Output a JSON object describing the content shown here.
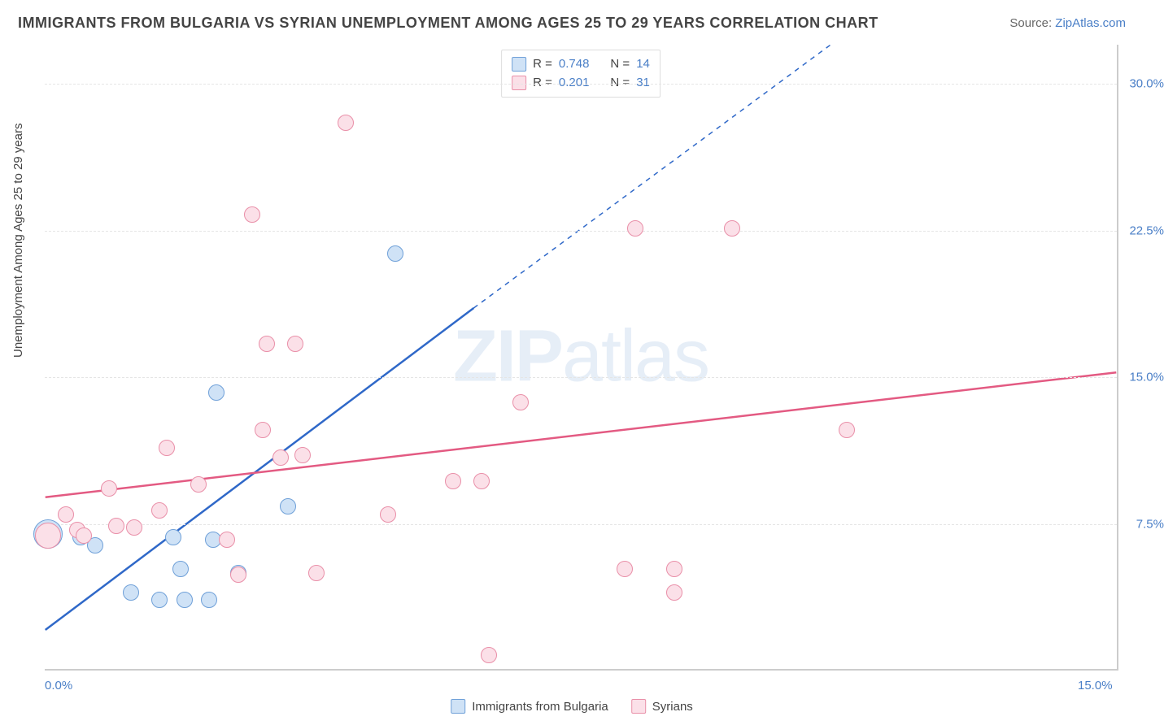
{
  "title": "IMMIGRANTS FROM BULGARIA VS SYRIAN UNEMPLOYMENT AMONG AGES 25 TO 29 YEARS CORRELATION CHART",
  "source_label": "Source: ",
  "source_name": "ZipAtlas.com",
  "watermark": "ZIPatlas",
  "yaxis_title": "Unemployment Among Ages 25 to 29 years",
  "plot": {
    "background_color": "#ffffff",
    "border_color": "#cccccc",
    "grid_color": "#e5e5e5",
    "tick_label_color": "#4a7fc7",
    "axis_title_fontsize": 15,
    "tick_fontsize": 15,
    "title_fontsize": 18,
    "title_color": "#444444",
    "xlim": [
      0,
      15
    ],
    "ylim": [
      0,
      32
    ],
    "yticks": [
      {
        "v": 7.5,
        "label": "7.5%"
      },
      {
        "v": 15.0,
        "label": "15.0%"
      },
      {
        "v": 22.5,
        "label": "22.5%"
      },
      {
        "v": 30.0,
        "label": "30.0%"
      }
    ],
    "xticks": [
      {
        "v": 0,
        "label": "0.0%"
      },
      {
        "v": 15,
        "label": "15.0%"
      }
    ]
  },
  "series": [
    {
      "name": "Immigrants from Bulgaria",
      "fill_color": "#cfe2f6",
      "stroke_color": "#6fa0d8",
      "line_color": "#2f68c8",
      "marker_radius": 10,
      "marker_border": 1.5,
      "R_label": "R = ",
      "R": "0.748",
      "N_label": "N = ",
      "N": "14",
      "trend": {
        "x1": 0,
        "y1": 2.0,
        "x2": 6.0,
        "y2": 18.5,
        "dash_to_x": 11.0,
        "dash_to_y": 32.0
      },
      "points": [
        {
          "x": 0.05,
          "y": 7.0,
          "r": 18
        },
        {
          "x": 0.5,
          "y": 6.8
        },
        {
          "x": 0.7,
          "y": 6.4
        },
        {
          "x": 1.2,
          "y": 4.0
        },
        {
          "x": 1.6,
          "y": 3.6
        },
        {
          "x": 1.8,
          "y": 6.8
        },
        {
          "x": 1.9,
          "y": 5.2
        },
        {
          "x": 1.95,
          "y": 3.6
        },
        {
          "x": 2.3,
          "y": 3.6
        },
        {
          "x": 2.35,
          "y": 6.7
        },
        {
          "x": 2.4,
          "y": 14.2
        },
        {
          "x": 2.7,
          "y": 5.0
        },
        {
          "x": 3.4,
          "y": 8.4
        },
        {
          "x": 4.9,
          "y": 21.3
        }
      ]
    },
    {
      "name": "Syrians",
      "fill_color": "#fbe0e8",
      "stroke_color": "#e98fa8",
      "line_color": "#e35a82",
      "marker_radius": 10,
      "marker_border": 1.5,
      "R_label": "R = ",
      "R": "0.201",
      "N_label": "N = ",
      "N": "31",
      "trend": {
        "x1": 0,
        "y1": 8.8,
        "x2": 15.0,
        "y2": 15.2
      },
      "points": [
        {
          "x": 0.05,
          "y": 6.9,
          "r": 16
        },
        {
          "x": 0.3,
          "y": 8.0
        },
        {
          "x": 0.45,
          "y": 7.2
        },
        {
          "x": 0.55,
          "y": 6.9
        },
        {
          "x": 0.9,
          "y": 9.3
        },
        {
          "x": 1.0,
          "y": 7.4
        },
        {
          "x": 1.25,
          "y": 7.3
        },
        {
          "x": 1.6,
          "y": 8.2
        },
        {
          "x": 1.7,
          "y": 11.4
        },
        {
          "x": 2.15,
          "y": 9.5
        },
        {
          "x": 2.55,
          "y": 6.7
        },
        {
          "x": 2.7,
          "y": 4.9
        },
        {
          "x": 2.9,
          "y": 23.3
        },
        {
          "x": 3.05,
          "y": 12.3
        },
        {
          "x": 3.1,
          "y": 16.7
        },
        {
          "x": 3.3,
          "y": 10.9
        },
        {
          "x": 3.5,
          "y": 16.7
        },
        {
          "x": 3.6,
          "y": 11.0
        },
        {
          "x": 3.8,
          "y": 5.0
        },
        {
          "x": 4.2,
          "y": 28.0
        },
        {
          "x": 4.8,
          "y": 8.0
        },
        {
          "x": 5.7,
          "y": 9.7
        },
        {
          "x": 6.1,
          "y": 9.7
        },
        {
          "x": 6.2,
          "y": 0.8
        },
        {
          "x": 6.65,
          "y": 13.7
        },
        {
          "x": 8.1,
          "y": 5.2
        },
        {
          "x": 8.25,
          "y": 22.6
        },
        {
          "x": 8.8,
          "y": 5.2
        },
        {
          "x": 8.8,
          "y": 4.0
        },
        {
          "x": 9.6,
          "y": 22.6
        },
        {
          "x": 11.2,
          "y": 12.3
        }
      ]
    }
  ],
  "legend_bottom": [
    {
      "swatch_fill": "#cfe2f6",
      "swatch_stroke": "#6fa0d8",
      "label": "Immigrants from Bulgaria"
    },
    {
      "swatch_fill": "#fbe0e8",
      "swatch_stroke": "#e98fa8",
      "label": "Syrians"
    }
  ]
}
